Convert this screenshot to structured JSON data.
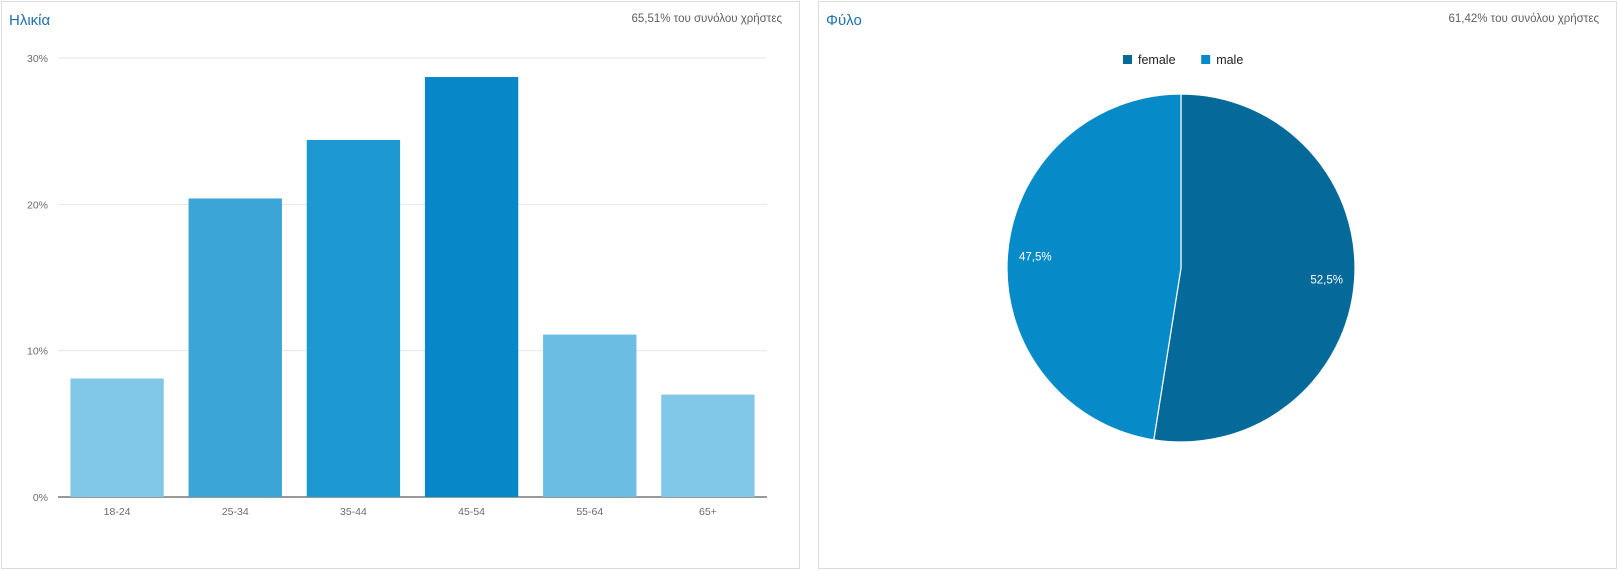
{
  "age_panel": {
    "title": "Ηλικία",
    "subtitle": "65,51% του συνόλου χρήστες"
  },
  "gender_panel": {
    "title": "Φύλο",
    "subtitle": "61,42% του συνόλου χρήστες"
  },
  "chart_data": [
    {
      "type": "bar",
      "title": "Ηλικία",
      "categories": [
        "18-24",
        "25-34",
        "35-44",
        "45-54",
        "55-64",
        "65+"
      ],
      "values": [
        8.1,
        20.4,
        24.4,
        28.7,
        11.1,
        7.0
      ],
      "ylim": [
        0,
        30
      ],
      "yticks": [
        "0%",
        "10%",
        "20%",
        "30%"
      ],
      "colors": [
        "#80c7e8",
        "#3aa5d6",
        "#1e98d0",
        "#0887c8",
        "#6cbde3",
        "#80c7e8"
      ],
      "grid": true,
      "legend": "none"
    },
    {
      "type": "pie",
      "title": "Φύλο",
      "categories": [
        "female",
        "male"
      ],
      "values": [
        52.5,
        47.5
      ],
      "labels": [
        "52,5%",
        "47,5%"
      ],
      "colors": [
        "#056a99",
        "#078bc8"
      ],
      "legend": "top"
    }
  ]
}
